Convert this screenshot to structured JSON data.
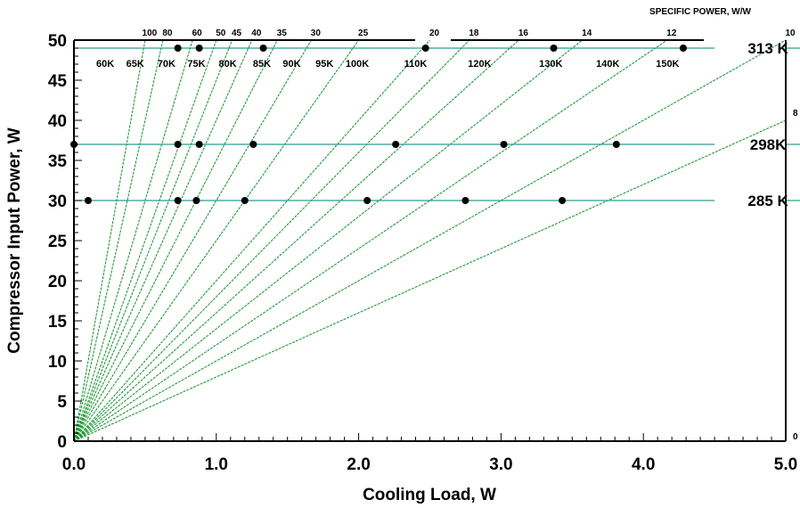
{
  "chart_data": {
    "type": "scatter",
    "xlabel": "Cooling Load, W",
    "ylabel": "Compressor Input Power, W",
    "xlim": [
      0,
      5
    ],
    "ylim": [
      0,
      50
    ],
    "x_ticks": [
      "0.0",
      "1.0",
      "2.0",
      "3.0",
      "4.0",
      "5.0"
    ],
    "y_ticks": [
      "0",
      "5",
      "10",
      "15",
      "20",
      "25",
      "30",
      "35",
      "40",
      "45",
      "50"
    ],
    "grid": false,
    "specific_power_title": "SPECIFIC POWER, W/W",
    "specific_power_lines": [
      {
        "label": "100",
        "value": 100
      },
      {
        "label": "80",
        "value": 80
      },
      {
        "label": "60",
        "value": 60
      },
      {
        "label": "50",
        "value": 50
      },
      {
        "label": "45",
        "value": 45
      },
      {
        "label": "40",
        "value": 40
      },
      {
        "label": "35",
        "value": 35
      },
      {
        "label": "30",
        "value": 30
      },
      {
        "label": "25",
        "value": 25
      },
      {
        "label": "20",
        "value": 20
      },
      {
        "label": "18",
        "value": 18
      },
      {
        "label": "16",
        "value": 16
      },
      {
        "label": "14",
        "value": 14
      },
      {
        "label": "12",
        "value": 12
      },
      {
        "label": "10",
        "value": 10
      },
      {
        "label": "8",
        "value": 8
      },
      {
        "label": "0",
        "value": 0
      }
    ],
    "temperature_labels": [
      {
        "label": "60K",
        "x": 0.22
      },
      {
        "label": "65K",
        "x": 0.43
      },
      {
        "label": "70K",
        "x": 0.65
      },
      {
        "label": "75K",
        "x": 0.86
      },
      {
        "label": "80K",
        "x": 1.08
      },
      {
        "label": "85K",
        "x": 1.32
      },
      {
        "label": "90K",
        "x": 1.53
      },
      {
        "label": "95K",
        "x": 1.76
      },
      {
        "label": "100K",
        "x": 1.99
      },
      {
        "label": "110K",
        "x": 2.4
      },
      {
        "label": "120K",
        "x": 2.85
      },
      {
        "label": "130K",
        "x": 3.35
      },
      {
        "label": "140K",
        "x": 3.75
      },
      {
        "label": "150K",
        "x": 4.17
      }
    ],
    "isotherms": [
      {
        "name": "313 K",
        "y": 49,
        "points": [
          [
            0.73,
            49
          ],
          [
            0.88,
            49
          ],
          [
            1.33,
            49
          ],
          [
            2.47,
            49
          ],
          [
            3.37,
            49
          ],
          [
            4.28,
            49
          ]
        ]
      },
      {
        "name": "298K",
        "y": 37,
        "points": [
          [
            0.0,
            37
          ],
          [
            0.73,
            37
          ],
          [
            0.88,
            37
          ],
          [
            1.26,
            37
          ],
          [
            2.26,
            37
          ],
          [
            3.02,
            37
          ],
          [
            3.81,
            37
          ]
        ]
      },
      {
        "name": "285 K",
        "y": 30,
        "points": [
          [
            0.1,
            30
          ],
          [
            0.73,
            30
          ],
          [
            0.86,
            30
          ],
          [
            1.2,
            30
          ],
          [
            2.06,
            30
          ],
          [
            2.75,
            30
          ],
          [
            3.43,
            30
          ]
        ]
      }
    ],
    "colors": {
      "specific_power_lines": "#22993a",
      "isotherm_lines": "#2a9d8f",
      "points": "#000000"
    }
  }
}
